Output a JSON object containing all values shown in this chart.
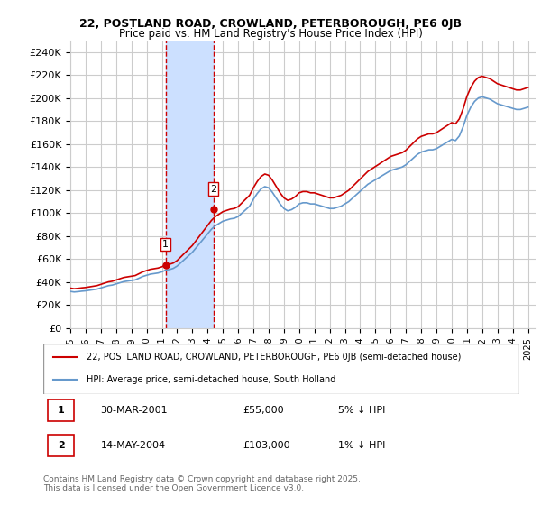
{
  "title_line1": "22, POSTLAND ROAD, CROWLAND, PETERBOROUGH, PE6 0JB",
  "title_line2": "Price paid vs. HM Land Registry's House Price Index (HPI)",
  "ylabel_ticks": [
    "£0",
    "£20K",
    "£40K",
    "£60K",
    "£80K",
    "£100K",
    "£120K",
    "£140K",
    "£160K",
    "£180K",
    "£200K",
    "£220K",
    "£240K"
  ],
  "ytick_vals": [
    0,
    20000,
    40000,
    60000,
    80000,
    100000,
    120000,
    140000,
    160000,
    180000,
    200000,
    220000,
    240000
  ],
  "ylim": [
    0,
    250000
  ],
  "xlim_start": 1995.0,
  "xlim_end": 2025.5,
  "sale1_date": 2001.25,
  "sale1_price": 55000,
  "sale1_label": "1",
  "sale2_date": 2004.37,
  "sale2_price": 103000,
  "sale2_label": "2",
  "shade_x1": 2001.25,
  "shade_x2": 2004.37,
  "legend_line1": "22, POSTLAND ROAD, CROWLAND, PETERBOROUGH, PE6 0JB (semi-detached house)",
  "legend_line2": "HPI: Average price, semi-detached house, South Holland",
  "annotation1": "1     30-MAR-2001              £55,000          5% ↓ HPI",
  "annotation2": "2     14-MAY-2004              £103,000         1% ↓ HPI",
  "footer": "Contains HM Land Registry data © Crown copyright and database right 2025.\nThis data is licensed under the Open Government Licence v3.0.",
  "line_color_red": "#cc0000",
  "line_color_blue": "#6699cc",
  "shade_color": "#cce0ff",
  "bg_color": "#ffffff",
  "grid_color": "#cccccc",
  "hpi_years": [
    1995.0,
    1995.25,
    1995.5,
    1995.75,
    1996.0,
    1996.25,
    1996.5,
    1996.75,
    1997.0,
    1997.25,
    1997.5,
    1997.75,
    1998.0,
    1998.25,
    1998.5,
    1998.75,
    1999.0,
    1999.25,
    1999.5,
    1999.75,
    2000.0,
    2000.25,
    2000.5,
    2000.75,
    2001.0,
    2001.25,
    2001.5,
    2001.75,
    2002.0,
    2002.25,
    2002.5,
    2002.75,
    2003.0,
    2003.25,
    2003.5,
    2003.75,
    2004.0,
    2004.25,
    2004.5,
    2004.75,
    2005.0,
    2005.25,
    2005.5,
    2005.75,
    2006.0,
    2006.25,
    2006.5,
    2006.75,
    2007.0,
    2007.25,
    2007.5,
    2007.75,
    2008.0,
    2008.25,
    2008.5,
    2008.75,
    2009.0,
    2009.25,
    2009.5,
    2009.75,
    2010.0,
    2010.25,
    2010.5,
    2010.75,
    2011.0,
    2011.25,
    2011.5,
    2011.75,
    2012.0,
    2012.25,
    2012.5,
    2012.75,
    2013.0,
    2013.25,
    2013.5,
    2013.75,
    2014.0,
    2014.25,
    2014.5,
    2014.75,
    2015.0,
    2015.25,
    2015.5,
    2015.75,
    2016.0,
    2016.25,
    2016.5,
    2016.75,
    2017.0,
    2017.25,
    2017.5,
    2017.75,
    2018.0,
    2018.25,
    2018.5,
    2018.75,
    2019.0,
    2019.25,
    2019.5,
    2019.75,
    2020.0,
    2020.25,
    2020.5,
    2020.75,
    2021.0,
    2021.25,
    2021.5,
    2021.75,
    2022.0,
    2022.25,
    2022.5,
    2022.75,
    2023.0,
    2023.25,
    2023.5,
    2023.75,
    2024.0,
    2024.25,
    2024.5,
    2024.75,
    2025.0
  ],
  "hpi_values": [
    32000,
    31500,
    31800,
    32200,
    32500,
    33000,
    33500,
    34000,
    35000,
    36000,
    37000,
    37500,
    38500,
    39500,
    40500,
    41000,
    41500,
    42000,
    43500,
    45000,
    46000,
    47000,
    47500,
    48000,
    49000,
    50500,
    51000,
    52000,
    54000,
    57000,
    60000,
    63000,
    66000,
    70000,
    74000,
    78000,
    82000,
    86000,
    89000,
    91000,
    93000,
    94000,
    95000,
    95500,
    97000,
    100000,
    103000,
    106000,
    112000,
    117000,
    121000,
    123000,
    122000,
    118000,
    113000,
    108000,
    104000,
    102000,
    103000,
    105000,
    108000,
    109000,
    109000,
    108000,
    108000,
    107000,
    106000,
    105000,
    104000,
    104000,
    105000,
    106000,
    108000,
    110000,
    113000,
    116000,
    119000,
    122000,
    125000,
    127000,
    129000,
    131000,
    133000,
    135000,
    137000,
    138000,
    139000,
    140000,
    142000,
    145000,
    148000,
    151000,
    153000,
    154000,
    155000,
    155000,
    156000,
    158000,
    160000,
    162000,
    164000,
    163000,
    167000,
    175000,
    185000,
    192000,
    197000,
    200000,
    201000,
    200000,
    199000,
    197000,
    195000,
    194000,
    193000,
    192000,
    191000,
    190000,
    190000,
    191000,
    192000
  ],
  "sale_years": [
    2001.25,
    2004.37
  ],
  "sale_prices": [
    55000,
    103000
  ]
}
